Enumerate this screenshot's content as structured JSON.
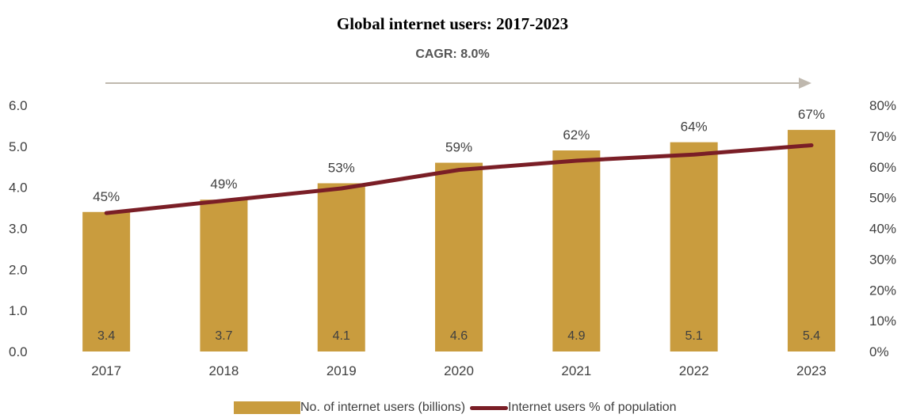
{
  "chart_data": {
    "type": "bar",
    "title": "Global internet users: 2017-2023",
    "annotation": "CAGR: 8.0%",
    "categories": [
      "2017",
      "2018",
      "2019",
      "2020",
      "2021",
      "2022",
      "2023"
    ],
    "series": [
      {
        "name": "No. of internet users (billions)",
        "type": "bar",
        "axis": "left",
        "values": [
          3.4,
          3.7,
          4.1,
          4.6,
          4.9,
          5.1,
          5.4
        ],
        "value_labels": [
          "3.4",
          "3.7",
          "4.1",
          "4.6",
          "4.9",
          "5.1",
          "5.4"
        ],
        "color": "#c99c3e"
      },
      {
        "name": "Internet users % of population",
        "type": "line",
        "axis": "right",
        "values": [
          45,
          49,
          53,
          59,
          62,
          64,
          67
        ],
        "value_labels": [
          "45%",
          "49%",
          "53%",
          "59%",
          "62%",
          "64%",
          "67%"
        ],
        "color": "#7a1e26"
      }
    ],
    "y_left": {
      "ylim": [
        0,
        6
      ],
      "tick_labels": [
        "0.0",
        "1.0",
        "2.0",
        "3.0",
        "4.0",
        "5.0",
        "6.0"
      ]
    },
    "y_right": {
      "ylim": [
        0,
        80
      ],
      "tick_labels": [
        "0%",
        "10%",
        "20%",
        "30%",
        "40%",
        "50%",
        "60%",
        "70%",
        "80%"
      ]
    },
    "arrow_color": "#bfb8ae",
    "grid": false,
    "legend_position": "bottom"
  }
}
